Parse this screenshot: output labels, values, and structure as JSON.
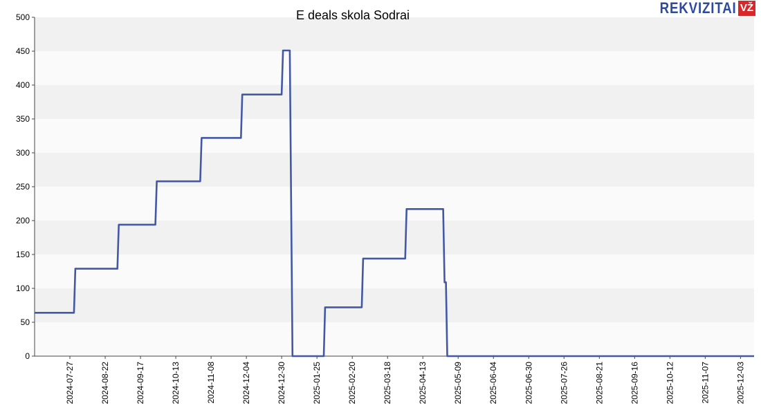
{
  "logo": {
    "text": "REKVIZITAI",
    "badge": "VŽ"
  },
  "chart_data": {
    "type": "line",
    "title": "E deals skola Sodrai",
    "xlabel": "",
    "ylabel": "",
    "xlim": [
      "2024-07-01",
      "2025-12-13"
    ],
    "ylim": [
      0,
      500
    ],
    "yticks": [
      0,
      50,
      100,
      150,
      200,
      250,
      300,
      350,
      400,
      450,
      500
    ],
    "xticks": [
      "2024-07-27",
      "2024-08-22",
      "2024-09-17",
      "2024-10-13",
      "2024-11-08",
      "2024-12-04",
      "2024-12-30",
      "2025-01-25",
      "2025-02-20",
      "2025-03-18",
      "2025-04-13",
      "2025-05-09",
      "2025-06-04",
      "2025-06-30",
      "2025-07-26",
      "2025-08-21",
      "2025-09-16",
      "2025-10-12",
      "2025-11-07",
      "2025-12-03"
    ],
    "grid": "horizontal bands",
    "legend": "none",
    "line_color": "#4358a5",
    "series": [
      {
        "points": [
          [
            "2024-07-01",
            64
          ],
          [
            "2024-07-30",
            64
          ],
          [
            "2024-07-31",
            129
          ],
          [
            "2024-08-31",
            129
          ],
          [
            "2024-09-01",
            194
          ],
          [
            "2024-09-28",
            194
          ],
          [
            "2024-09-29",
            258
          ],
          [
            "2024-10-31",
            258
          ],
          [
            "2024-11-01",
            322
          ],
          [
            "2024-11-30",
            322
          ],
          [
            "2024-12-01",
            386
          ],
          [
            "2024-12-30",
            386
          ],
          [
            "2024-12-31",
            451
          ],
          [
            "2025-01-05",
            451
          ],
          [
            "2025-01-07",
            0
          ],
          [
            "2025-01-30",
            0
          ],
          [
            "2025-01-31",
            72
          ],
          [
            "2025-02-27",
            72
          ],
          [
            "2025-02-28",
            144
          ],
          [
            "2025-03-31",
            144
          ],
          [
            "2025-04-01",
            217
          ],
          [
            "2025-04-28",
            217
          ],
          [
            "2025-04-29",
            109
          ],
          [
            "2025-04-30",
            109
          ],
          [
            "2025-05-01",
            0
          ],
          [
            "2025-12-13",
            0
          ]
        ]
      }
    ]
  }
}
